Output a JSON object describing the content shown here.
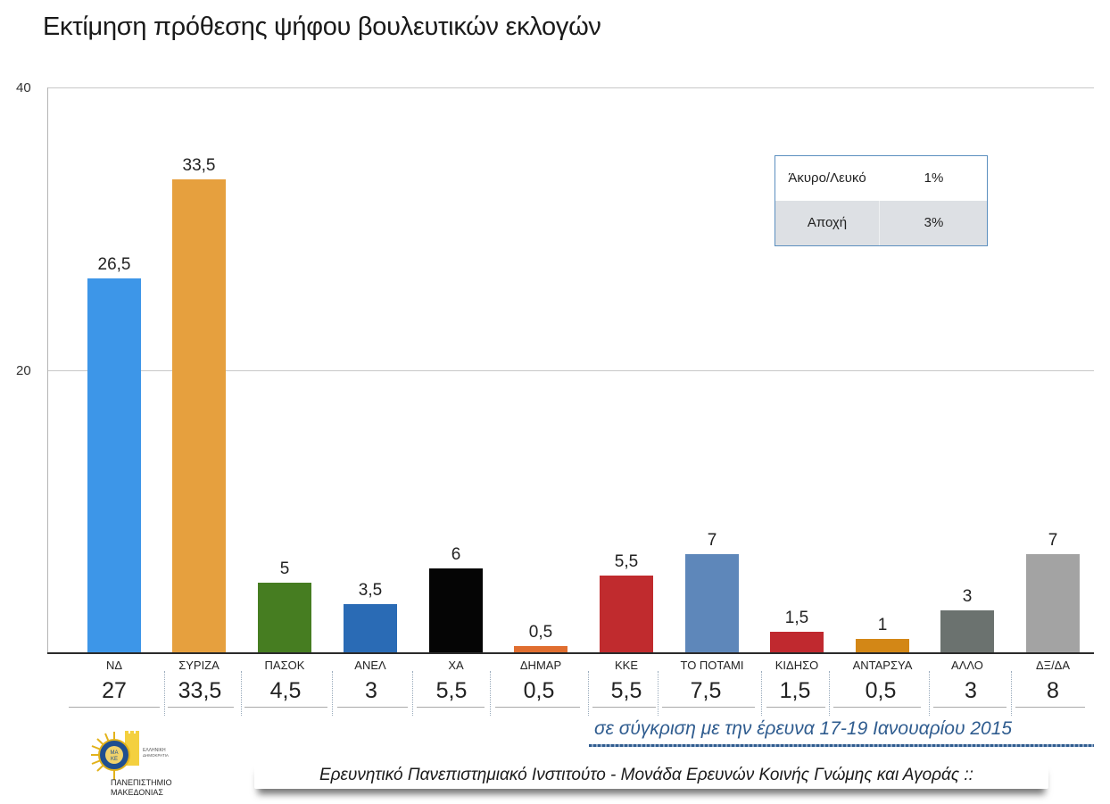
{
  "title": "Εκτίμηση πρόθεσης ψήφου βουλευτικών εκλογών",
  "y_axis": {
    "ticks": [
      "40",
      "20"
    ]
  },
  "legend_table": {
    "rows": [
      {
        "label": "Άκυρο/Λευκό",
        "value": "1%"
      },
      {
        "label": "Αποχή",
        "value": "3%"
      }
    ]
  },
  "bars": [
    {
      "category": "ΝΔ",
      "value_label": "26,5",
      "prev_label": "27"
    },
    {
      "category": "ΣΥΡΙΖΑ",
      "value_label": "33,5",
      "prev_label": "33,5"
    },
    {
      "category": "ΠΑΣΟΚ",
      "value_label": "5",
      "prev_label": "4,5"
    },
    {
      "category": "ΑΝΕΛ",
      "value_label": "3,5",
      "prev_label": "3"
    },
    {
      "category": "ΧΑ",
      "value_label": "6",
      "prev_label": "5,5"
    },
    {
      "category": "ΔΗΜΑΡ",
      "value_label": "0,5",
      "prev_label": "0,5"
    },
    {
      "category": "ΚΚΕ",
      "value_label": "5,5",
      "prev_label": "5,5"
    },
    {
      "category": "ΤΟ ΠΟΤΑΜΙ",
      "value_label": "7",
      "prev_label": "7,5"
    },
    {
      "category": "ΚΙΔΗΣΟ",
      "value_label": "1,5",
      "prev_label": "1,5"
    },
    {
      "category": "ΑΝΤΑΡΣΥΑ",
      "value_label": "1",
      "prev_label": "0,5"
    },
    {
      "category": "ΑΛΛΟ",
      "value_label": "3",
      "prev_label": "3"
    },
    {
      "category": "ΔΞ/ΔΑ",
      "value_label": "7",
      "prev_label": "8"
    }
  ],
  "comparison_note": "σε σύγκριση με την έρευνα 17-19 Ιανουαρίου 2015",
  "footer": "Ερευνητικό Πανεπιστημιακό Ινστιτούτο - Μονάδα Ερευνών Κοινής Γνώμης και Αγοράς ::",
  "logo": {
    "line1": "ΕΛΛΗΝΙΚΗ",
    "line2": "ΔΗΜΟΚΡΑΤΙΑ",
    "line3": "ΠΑΝΕΠΙΣΤΗΜΙΟ",
    "line4": "ΜΑΚΕΔΟΝΙΑΣ",
    "seal": "ΜΑΚΕ"
  },
  "colors": {
    "ΝΔ": "#3d96e8",
    "ΣΥΡΙΖΑ": "#e6a03e",
    "ΠΑΣΟΚ": "#467d21",
    "ΑΝΕΛ": "#2a6bb5",
    "ΧΑ": "#050505",
    "ΔΗΜΑΡ": "#e06e30",
    "ΚΚΕ": "#c02b2e",
    "ΤΟ ΠΟΤΑΜΙ": "#5e87ba",
    "ΚΙΔΗΣΟ": "#c0292f",
    "ΑΝΤΑΡΣΥΑ": "#d38716",
    "ΑΛΛΟ": "#6b726f",
    "ΔΞ/ΔΑ": "#a3a3a3",
    "note_blue": "#2f5c8f"
  },
  "chart_data": {
    "type": "bar",
    "title": "Εκτίμηση πρόθεσης ψήφου βουλευτικών εκλογών",
    "categories": [
      "ΝΔ",
      "ΣΥΡΙΖΑ",
      "ΠΑΣΟΚ",
      "ΑΝΕΛ",
      "ΧΑ",
      "ΔΗΜΑΡ",
      "ΚΚΕ",
      "ΤΟ ΠΟΤΑΜΙ",
      "ΚΙΔΗΣΟ",
      "ΑΝΤΑΡΣΥΑ",
      "ΑΛΛΟ",
      "ΔΞ/ΔΑ"
    ],
    "series": [
      {
        "name": "Εκτίμηση πρόθεσης ψήφου",
        "values": [
          26.5,
          33.5,
          5,
          3.5,
          6,
          0.5,
          5.5,
          7,
          1.5,
          1,
          3,
          7
        ]
      },
      {
        "name": "έρευνα 17-19 Ιανουαρίου 2015",
        "values": [
          27,
          33.5,
          4.5,
          3,
          5.5,
          0.5,
          5.5,
          7.5,
          1.5,
          0.5,
          3,
          8
        ]
      }
    ],
    "xlabel": "",
    "ylabel": "",
    "ylim": [
      0,
      40
    ],
    "yticks": [
      20,
      40
    ],
    "grid": true,
    "annotations": [
      "Άκυρο/Λευκό 1%",
      "Αποχή 3%",
      "σε σύγκριση με την έρευνα 17-19 Ιανουαρίου 2015"
    ]
  }
}
